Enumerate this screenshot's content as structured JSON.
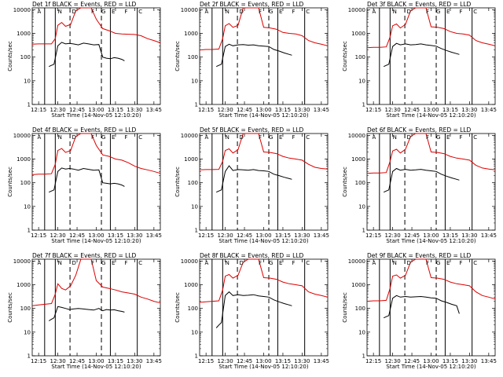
{
  "colors": {
    "events": "#000000",
    "lld": "#dd0000",
    "background": "#ffffff"
  },
  "common": {
    "ylabel": "Counts/sec",
    "xlabel": "Start Time (14-Nov-05 12:10:20)",
    "x_ticks": [
      "12:15",
      "12:30",
      "12:45",
      "13:00",
      "13:15",
      "13:30",
      "13:45"
    ],
    "y_ticks": [
      "1",
      "10",
      "100",
      "1000",
      "10000"
    ],
    "y_scale": "log",
    "ylim": [
      1,
      12000
    ],
    "xlim": [
      "12:10",
      "13:50"
    ],
    "letters": [
      "A",
      "N",
      "D",
      "F",
      "G",
      "E",
      "F",
      "C"
    ]
  },
  "chart_data": [
    {
      "type": "line",
      "title": "Det 1f BLACK = Events, RED = LLD",
      "series": [
        {
          "name": "Events",
          "color": "#000000",
          "x": [
            "12:23",
            "12:25",
            "12:27",
            "12:30",
            "12:33",
            "12:36",
            "12:39",
            "12:42",
            "12:46",
            "12:50",
            "12:54",
            "12:58",
            "13:02",
            "13:05",
            "13:08",
            "13:11",
            "13:14",
            "13:17",
            "13:20",
            "13:22"
          ],
          "y": [
            40,
            45,
            50,
            300,
            420,
            360,
            380,
            360,
            330,
            390,
            360,
            330,
            340,
            100,
            90,
            85,
            95,
            90,
            80,
            70
          ]
        },
        {
          "name": "LLD",
          "color": "#dd0000",
          "x": [
            "12:10",
            "12:15",
            "12:20",
            "12:25",
            "12:28",
            "12:30",
            "12:33",
            "12:36",
            "12:40",
            "12:44",
            "12:48",
            "12:52",
            "12:56",
            "13:00",
            "13:05",
            "13:10",
            "13:15",
            "13:20",
            "13:25",
            "13:30",
            "13:35",
            "13:40",
            "13:45",
            "13:50"
          ],
          "y": [
            350,
            360,
            360,
            360,
            600,
            2200,
            2900,
            2000,
            2400,
            9000,
            12000,
            12000,
            12000,
            4000,
            1600,
            1300,
            1000,
            950,
            920,
            900,
            800,
            600,
            500,
            400
          ]
        }
      ]
    },
    {
      "type": "line",
      "title": "Det 2f BLACK = Events, RED = LLD",
      "series": [
        {
          "name": "Events",
          "color": "#000000",
          "x": [
            "12:23",
            "12:25",
            "12:27",
            "12:30",
            "12:33",
            "12:36",
            "12:40",
            "12:44",
            "12:48",
            "12:52",
            "12:56",
            "13:00",
            "13:04",
            "13:08",
            "13:12",
            "13:16",
            "13:20",
            "13:22"
          ],
          "y": [
            40,
            45,
            50,
            280,
            350,
            300,
            330,
            340,
            320,
            330,
            300,
            290,
            280,
            210,
            180,
            150,
            130,
            120
          ]
        },
        {
          "name": "LLD",
          "color": "#dd0000",
          "x": [
            "12:10",
            "12:15",
            "12:20",
            "12:25",
            "12:28",
            "12:30",
            "12:33",
            "12:36",
            "12:40",
            "12:44",
            "12:48",
            "12:52",
            "12:56",
            "13:00",
            "13:05",
            "13:10",
            "13:15",
            "13:20",
            "13:25",
            "13:30",
            "13:35",
            "13:40",
            "13:45",
            "13:50"
          ],
          "y": [
            200,
            210,
            210,
            220,
            600,
            2100,
            2600,
            1800,
            2200,
            12000,
            12000,
            12000,
            12000,
            1800,
            1700,
            1500,
            1100,
            1000,
            950,
            800,
            500,
            400,
            350,
            300
          ]
        }
      ]
    },
    {
      "type": "line",
      "title": "Det 3f BLACK = Events, RED = LLD",
      "series": [
        {
          "name": "Events",
          "color": "#000000",
          "x": [
            "12:23",
            "12:25",
            "12:27",
            "12:30",
            "12:33",
            "12:36",
            "12:40",
            "12:44",
            "12:48",
            "12:52",
            "12:56",
            "13:00",
            "13:04",
            "13:08",
            "13:12",
            "13:16",
            "13:20",
            "13:22"
          ],
          "y": [
            40,
            45,
            50,
            280,
            380,
            330,
            360,
            330,
            340,
            360,
            330,
            310,
            290,
            230,
            190,
            160,
            140,
            130
          ]
        },
        {
          "name": "LLD",
          "color": "#dd0000",
          "x": [
            "12:10",
            "12:15",
            "12:20",
            "12:25",
            "12:28",
            "12:30",
            "12:33",
            "12:36",
            "12:40",
            "12:44",
            "12:48",
            "12:52",
            "12:56",
            "13:00",
            "13:05",
            "13:10",
            "13:15",
            "13:20",
            "13:25",
            "13:30",
            "13:35",
            "13:40",
            "13:45",
            "13:50"
          ],
          "y": [
            250,
            260,
            260,
            270,
            700,
            2100,
            2500,
            1700,
            2400,
            9000,
            12000,
            12000,
            12000,
            1900,
            1800,
            1600,
            1200,
            1000,
            950,
            850,
            500,
            400,
            350,
            300
          ]
        }
      ]
    },
    {
      "type": "line",
      "title": "Det 4f BLACK = Events, RED = LLD",
      "series": [
        {
          "name": "Events",
          "color": "#000000",
          "x": [
            "12:23",
            "12:25",
            "12:27",
            "12:30",
            "12:33",
            "12:36",
            "12:39",
            "12:42",
            "12:46",
            "12:50",
            "12:54",
            "12:58",
            "13:02",
            "13:05",
            "13:08",
            "13:11",
            "13:14",
            "13:17",
            "13:20",
            "13:22"
          ],
          "y": [
            40,
            45,
            50,
            300,
            420,
            380,
            400,
            380,
            340,
            400,
            370,
            340,
            350,
            100,
            95,
            90,
            95,
            90,
            80,
            70
          ]
        },
        {
          "name": "LLD",
          "color": "#dd0000",
          "x": [
            "12:10",
            "12:15",
            "12:20",
            "12:25",
            "12:28",
            "12:30",
            "12:33",
            "12:36",
            "12:40",
            "12:44",
            "12:48",
            "12:52",
            "12:56",
            "13:00",
            "13:05",
            "13:10",
            "13:15",
            "13:20",
            "13:25",
            "13:30",
            "13:35",
            "13:40",
            "13:45",
            "13:50"
          ],
          "y": [
            220,
            230,
            230,
            240,
            600,
            2300,
            2800,
            1900,
            2300,
            9000,
            12000,
            12000,
            12000,
            3800,
            1500,
            1300,
            1000,
            900,
            700,
            500,
            400,
            350,
            300,
            250
          ]
        }
      ]
    },
    {
      "type": "line",
      "title": "Det 5f BLACK = Events, RED = LLD",
      "series": [
        {
          "name": "Events",
          "color": "#000000",
          "x": [
            "12:23",
            "12:25",
            "12:27",
            "12:30",
            "12:33",
            "12:36",
            "12:40",
            "12:44",
            "12:48",
            "12:52",
            "12:56",
            "13:00",
            "13:04",
            "13:08",
            "13:12",
            "13:16",
            "13:20",
            "13:22"
          ],
          "y": [
            40,
            45,
            50,
            300,
            520,
            330,
            360,
            350,
            340,
            360,
            330,
            320,
            300,
            230,
            200,
            170,
            150,
            140
          ]
        },
        {
          "name": "LLD",
          "color": "#dd0000",
          "x": [
            "12:10",
            "12:15",
            "12:20",
            "12:25",
            "12:28",
            "12:30",
            "12:33",
            "12:36",
            "12:40",
            "12:44",
            "12:48",
            "12:52",
            "12:56",
            "13:00",
            "13:05",
            "13:10",
            "13:15",
            "13:20",
            "13:25",
            "13:30",
            "13:35",
            "13:40",
            "13:45",
            "13:50"
          ],
          "y": [
            350,
            360,
            360,
            370,
            800,
            2300,
            2700,
            1800,
            2500,
            12000,
            12000,
            12000,
            12000,
            2000,
            1900,
            1700,
            1300,
            1100,
            1000,
            900,
            600,
            450,
            400,
            380
          ]
        }
      ]
    },
    {
      "type": "line",
      "title": "Det 6f BLACK = Events, RED = LLD",
      "series": [
        {
          "name": "Events",
          "color": "#000000",
          "x": [
            "12:23",
            "12:25",
            "12:27",
            "12:30",
            "12:33",
            "12:36",
            "12:40",
            "12:44",
            "12:48",
            "12:52",
            "12:56",
            "13:00",
            "13:04",
            "13:08",
            "13:12",
            "13:16",
            "13:20",
            "13:22"
          ],
          "y": [
            40,
            45,
            50,
            300,
            400,
            340,
            370,
            340,
            350,
            370,
            340,
            320,
            300,
            230,
            190,
            160,
            140,
            130
          ]
        },
        {
          "name": "LLD",
          "color": "#dd0000",
          "x": [
            "12:10",
            "12:15",
            "12:20",
            "12:25",
            "12:28",
            "12:30",
            "12:33",
            "12:36",
            "12:40",
            "12:44",
            "12:48",
            "12:52",
            "12:56",
            "13:00",
            "13:05",
            "13:10",
            "13:15",
            "13:20",
            "13:25",
            "13:30",
            "13:35",
            "13:40",
            "13:45",
            "13:50"
          ],
          "y": [
            250,
            260,
            260,
            270,
            800,
            2200,
            2600,
            1800,
            2600,
            9000,
            12000,
            12000,
            12000,
            2000,
            1900,
            1700,
            1300,
            1100,
            1000,
            900,
            550,
            420,
            380,
            350
          ]
        }
      ]
    },
    {
      "type": "line",
      "title": "Det 7f BLACK = Events, RED = LLD",
      "series": [
        {
          "name": "Events",
          "color": "#000000",
          "x": [
            "12:23",
            "12:25",
            "12:27",
            "12:30",
            "12:33",
            "12:36",
            "12:39",
            "12:42",
            "12:46",
            "12:50",
            "12:54",
            "12:58",
            "13:02",
            "13:05",
            "13:08",
            "13:11",
            "13:14",
            "13:17",
            "13:20",
            "13:22"
          ],
          "y": [
            30,
            35,
            40,
            120,
            110,
            100,
            90,
            95,
            100,
            95,
            90,
            85,
            100,
            80,
            90,
            85,
            88,
            80,
            75,
            70
          ]
        },
        {
          "name": "LLD",
          "color": "#dd0000",
          "x": [
            "12:10",
            "12:15",
            "12:20",
            "12:25",
            "12:28",
            "12:30",
            "12:33",
            "12:36",
            "12:40",
            "12:44",
            "12:48",
            "12:52",
            "12:56",
            "13:00",
            "13:05",
            "13:10",
            "13:15",
            "13:20",
            "13:25",
            "13:30",
            "13:35",
            "13:40",
            "13:45",
            "13:50"
          ],
          "y": [
            130,
            140,
            150,
            160,
            400,
            1100,
            700,
            600,
            900,
            2500,
            12000,
            12000,
            12000,
            1500,
            800,
            700,
            600,
            500,
            450,
            400,
            300,
            250,
            200,
            170
          ]
        }
      ]
    },
    {
      "type": "line",
      "title": "Det 8f BLACK = Events, RED = LLD",
      "series": [
        {
          "name": "Events",
          "color": "#000000",
          "x": [
            "12:23",
            "12:25",
            "12:27",
            "12:30",
            "12:33",
            "12:36",
            "12:40",
            "12:44",
            "12:48",
            "12:52",
            "12:56",
            "13:00",
            "13:04",
            "13:08",
            "13:12",
            "13:16",
            "13:20",
            "13:22"
          ],
          "y": [
            15,
            20,
            25,
            350,
            500,
            350,
            380,
            350,
            360,
            380,
            340,
            320,
            300,
            230,
            190,
            160,
            140,
            130
          ]
        },
        {
          "name": "LLD",
          "color": "#dd0000",
          "x": [
            "12:10",
            "12:15",
            "12:20",
            "12:25",
            "12:28",
            "12:30",
            "12:33",
            "12:36",
            "12:40",
            "12:44",
            "12:48",
            "12:52",
            "12:56",
            "13:00",
            "13:05",
            "13:10",
            "13:15",
            "13:20",
            "13:25",
            "13:30",
            "13:35",
            "13:40",
            "13:45",
            "13:50"
          ],
          "y": [
            180,
            190,
            200,
            210,
            600,
            2300,
            2700,
            1900,
            2500,
            9000,
            12000,
            12000,
            12000,
            2000,
            1900,
            1700,
            1300,
            1100,
            1000,
            900,
            500,
            400,
            350,
            300
          ]
        }
      ]
    },
    {
      "type": "line",
      "title": "Det 9f BLACK = Events, RED = LLD",
      "series": [
        {
          "name": "Events",
          "color": "#000000",
          "x": [
            "12:23",
            "12:25",
            "12:27",
            "12:30",
            "12:33",
            "12:36",
            "12:40",
            "12:44",
            "12:48",
            "12:52",
            "12:56",
            "13:00",
            "13:04",
            "13:08",
            "13:12",
            "13:16",
            "13:20",
            "13:22"
          ],
          "y": [
            40,
            45,
            50,
            270,
            350,
            300,
            320,
            300,
            310,
            320,
            300,
            280,
            270,
            210,
            180,
            150,
            130,
            60
          ]
        },
        {
          "name": "LLD",
          "color": "#dd0000",
          "x": [
            "12:10",
            "12:15",
            "12:20",
            "12:25",
            "12:28",
            "12:30",
            "12:33",
            "12:36",
            "12:40",
            "12:44",
            "12:48",
            "12:52",
            "12:56",
            "13:00",
            "13:05",
            "13:10",
            "13:15",
            "13:20",
            "13:25",
            "13:30",
            "13:35",
            "13:40",
            "13:45",
            "13:50"
          ],
          "y": [
            200,
            210,
            210,
            220,
            700,
            2300,
            2600,
            1900,
            2500,
            9000,
            12000,
            12000,
            12000,
            2000,
            1900,
            1700,
            1300,
            1100,
            1000,
            900,
            500,
            350,
            300,
            250
          ]
        }
      ]
    }
  ]
}
